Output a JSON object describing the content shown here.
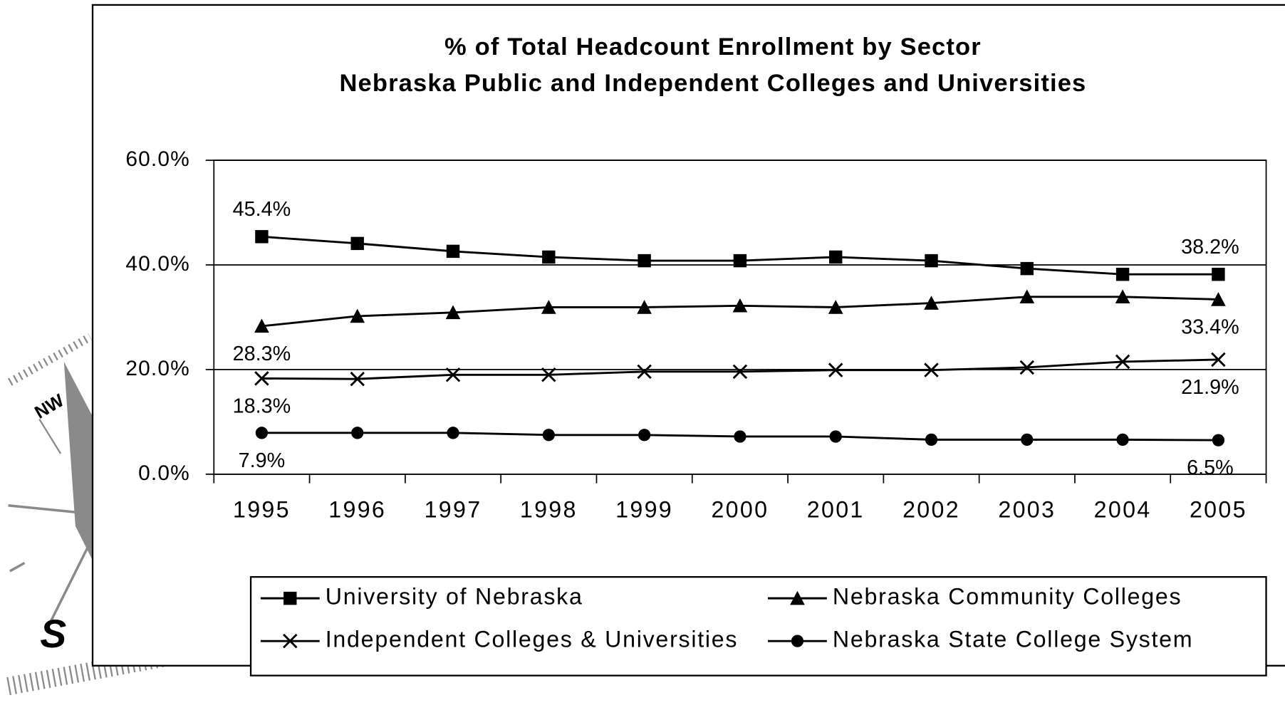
{
  "chart_data": {
    "type": "line",
    "title": "% of Total Headcount Enrollment by Sector",
    "subtitle": "Nebraska Public and Independent Colleges and Universities",
    "categories": [
      "1995",
      "1996",
      "1997",
      "1998",
      "1999",
      "2000",
      "2001",
      "2002",
      "2003",
      "2004",
      "2005"
    ],
    "ylim": [
      0,
      60
    ],
    "yticks": [
      {
        "value": 0,
        "label": "0.0%"
      },
      {
        "value": 20,
        "label": "20.0%"
      },
      {
        "value": 40,
        "label": "40.0%"
      },
      {
        "value": 60,
        "label": "60.0%"
      }
    ],
    "grid": true,
    "series": [
      {
        "name": "University of Nebraska",
        "color": "#000000",
        "marker": "square",
        "values": [
          45.4,
          44.1,
          42.6,
          41.5,
          40.8,
          40.8,
          41.5,
          40.8,
          39.3,
          38.2,
          38.2
        ],
        "value_labels": [
          "45.4%",
          null,
          null,
          null,
          null,
          null,
          null,
          null,
          null,
          null,
          "38.2%"
        ]
      },
      {
        "name": "Nebraska Community Colleges",
        "color": "#000000",
        "marker": "triangle",
        "values": [
          28.3,
          30.2,
          30.9,
          31.9,
          31.9,
          32.2,
          31.9,
          32.7,
          33.9,
          33.9,
          33.4
        ],
        "value_labels": [
          "28.3%",
          null,
          null,
          null,
          null,
          null,
          null,
          null,
          null,
          null,
          "33.4%"
        ]
      },
      {
        "name": "Independent Colleges & Universities",
        "color": "#000000",
        "marker": "x",
        "values": [
          18.3,
          18.2,
          19.0,
          19.0,
          19.6,
          19.6,
          19.9,
          19.9,
          20.4,
          21.5,
          21.9
        ],
        "value_labels": [
          "18.3%",
          null,
          null,
          null,
          null,
          null,
          null,
          null,
          null,
          null,
          "21.9%"
        ]
      },
      {
        "name": "Nebraska State College System",
        "color": "#000000",
        "marker": "circle",
        "values": [
          7.9,
          7.9,
          7.9,
          7.5,
          7.5,
          7.2,
          7.2,
          6.6,
          6.6,
          6.6,
          6.5
        ],
        "value_labels": [
          "7.9%",
          null,
          null,
          null,
          null,
          null,
          null,
          null,
          null,
          null,
          "6.5%"
        ]
      }
    ]
  }
}
